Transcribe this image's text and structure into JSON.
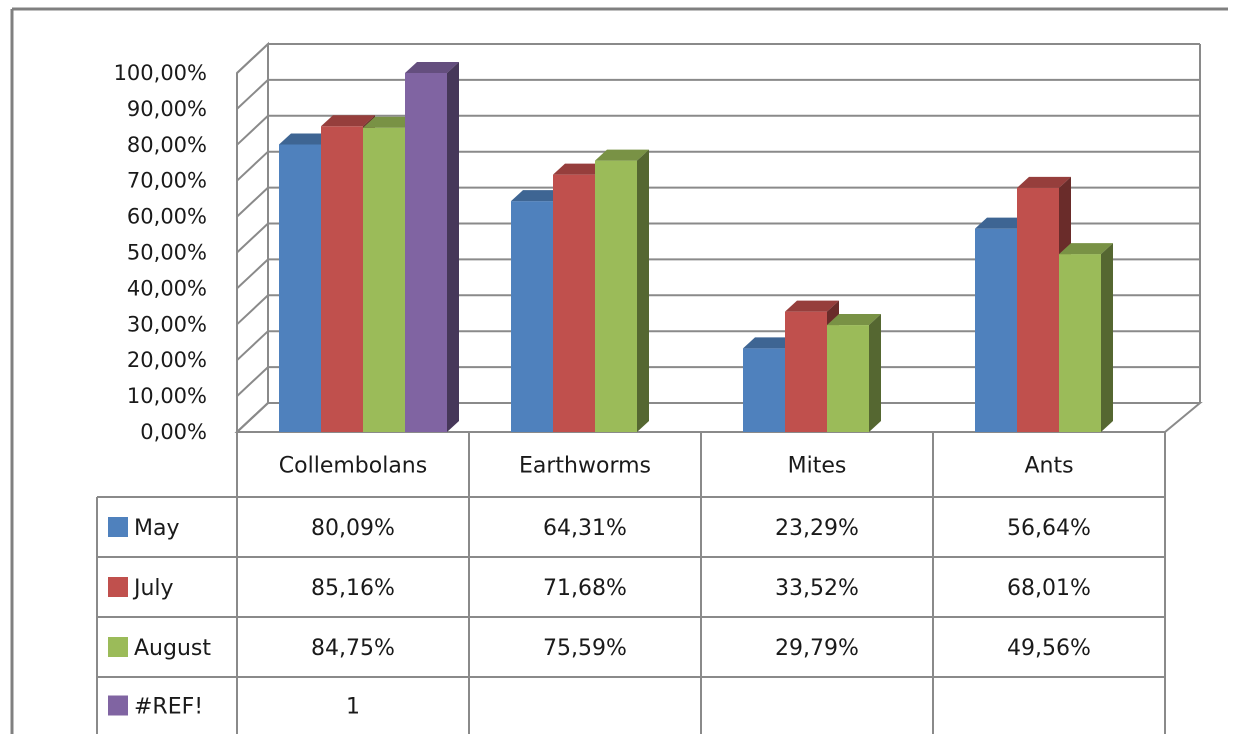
{
  "chart_data": {
    "type": "bar",
    "categories": [
      "Collembolans",
      "Earthworms",
      "Mites",
      "Ants"
    ],
    "series": [
      {
        "name": "May",
        "color": "#4F81BD",
        "values": [
          80.09,
          64.31,
          23.29,
          56.64
        ],
        "labels": [
          "80,09%",
          "64,31%",
          "23,29%",
          "56,64%"
        ]
      },
      {
        "name": "July",
        "color": "#C0504D",
        "values": [
          85.16,
          71.68,
          33.52,
          68.01
        ],
        "labels": [
          "85,16%",
          "71,68%",
          "33,52%",
          "68,01%"
        ]
      },
      {
        "name": "August",
        "color": "#9BBB59",
        "values": [
          84.75,
          75.59,
          29.79,
          49.56
        ],
        "labels": [
          "84,75%",
          "75,59%",
          "29,79%",
          "49,56%"
        ]
      },
      {
        "name": "#REF!",
        "color": "#8064A2",
        "values": [
          100,
          null,
          null,
          null
        ],
        "labels": [
          "1",
          "",
          "",
          ""
        ]
      }
    ],
    "y_ticks": [
      "0,00%",
      "10,00%",
      "20,00%",
      "30,00%",
      "40,00%",
      "50,00%",
      "60,00%",
      "70,00%",
      "80,00%",
      "90,00%",
      "100,00%"
    ],
    "ylim": [
      0,
      100
    ],
    "grid": true,
    "data_table": true,
    "title": "",
    "xlabel": "",
    "ylabel": ""
  }
}
